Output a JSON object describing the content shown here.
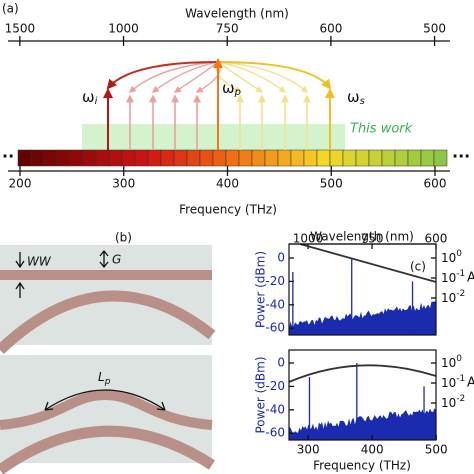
{
  "panel_a": {
    "label": "(a)",
    "wavelength_axis": {
      "title": "Wavelength (nm)",
      "ticks": [
        1500,
        1000,
        750,
        600,
        500
      ]
    },
    "frequency_axis": {
      "title": "Frequency (THz)",
      "ticks": [
        200,
        300,
        400,
        500,
        600
      ]
    },
    "idler": {
      "symbol": "ω",
      "sub": "i"
    },
    "pump": {
      "symbol": "ω",
      "sub": "p"
    },
    "signal": {
      "symbol": "ω",
      "sub": "s"
    },
    "this_work": "This work",
    "ellipsis_left": "··",
    "ellipsis_right": "···"
  },
  "panel_b": {
    "label": "(b)",
    "width": "WW",
    "gap": "G",
    "length": {
      "symbol": "L",
      "sub": "p"
    }
  },
  "panel_c": {
    "label": "(c)",
    "wavelength_axis": {
      "title": "Wavelength (nm)",
      "ticks": [
        1000,
        750,
        600
      ]
    },
    "frequency_axis": {
      "title": "Frequency (THz)",
      "ticks": [
        300,
        400,
        500
      ]
    },
    "power_axis": {
      "title": "Power (dBm)",
      "ticks": [
        0,
        -20,
        -40,
        -60
      ]
    },
    "right_axis": {
      "ticks": [
        {
          "base": "10",
          "exp": "0"
        },
        {
          "base": "10",
          "exp": "-1"
        },
        {
          "base": "10",
          "exp": "-2"
        }
      ],
      "title": "A"
    }
  }
}
